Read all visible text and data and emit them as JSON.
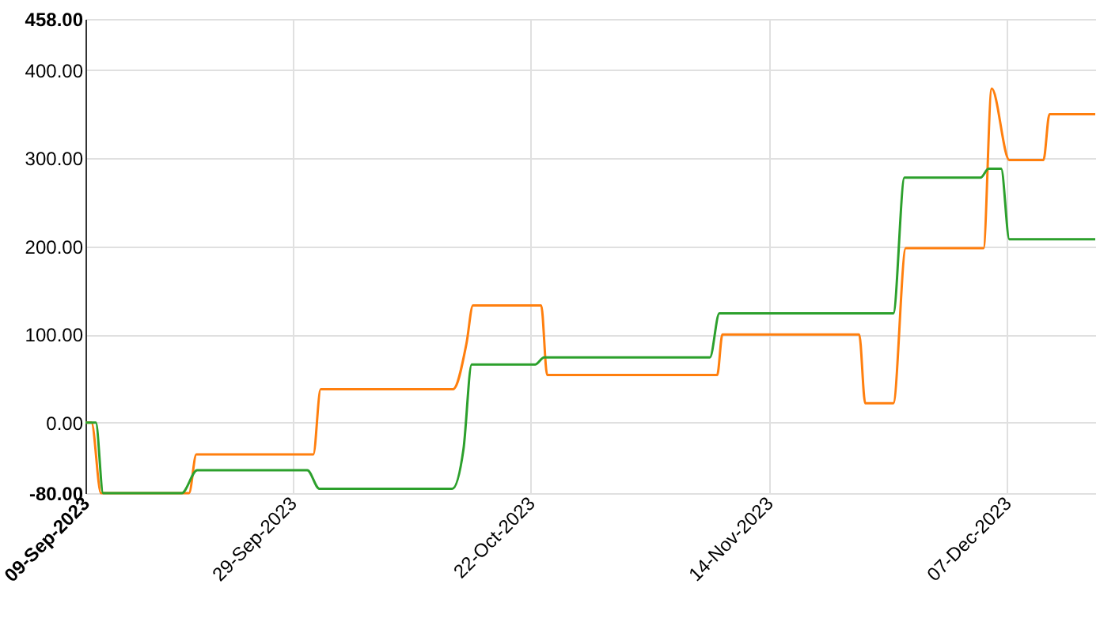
{
  "chart_data": {
    "type": "line",
    "xlim": [
      "2023-09-09",
      "2023-12-15T12:00"
    ],
    "ylim": [
      -80,
      458
    ],
    "xticks": [
      {
        "value": "2023-09-09",
        "label": "09-Sep-2023"
      },
      {
        "value": "2023-09-29",
        "label": "29-Sep-2023"
      },
      {
        "value": "2023-10-22",
        "label": "22-Oct-2023"
      },
      {
        "value": "2023-11-14",
        "label": "14-Nov-2023"
      },
      {
        "value": "2023-12-07",
        "label": "07-Dec-2023"
      }
    ],
    "yticks": [
      {
        "value": -80,
        "label": "-80.00"
      },
      {
        "value": 0,
        "label": "0.00"
      },
      {
        "value": 100,
        "label": "100.00"
      },
      {
        "value": 200,
        "label": "200.00"
      },
      {
        "value": 300,
        "label": "300.00"
      },
      {
        "value": 400,
        "label": "400.00"
      },
      {
        "value": 458,
        "label": "458.00"
      }
    ],
    "grid": true,
    "line_style": "solid",
    "marker": "none",
    "series": [
      {
        "color": "#ff7f0e",
        "x": [
          "2023-09-09",
          "2023-09-09T14:00",
          "2023-09-10T12:00",
          "2023-09-19",
          "2023-09-19T17:00",
          "2023-10-01",
          "2023-10-01T17:00",
          "2023-10-14T12:00",
          "2023-10-15T19:00",
          "2023-10-16T10:00",
          "2023-10-23",
          "2023-10-23T14:00",
          "2023-11-09",
          "2023-11-09T12:00",
          "2023-11-22T17:00",
          "2023-11-23T07:00",
          "2023-11-26",
          "2023-11-27T05:00",
          "2023-12-04T17:00",
          "2023-12-05T12:00",
          "2023-12-07T05:00",
          "2023-12-10T12:00",
          "2023-12-11T02:00",
          "2023-12-15T12:00"
        ],
        "values": [
          0,
          0,
          -80,
          -80,
          -36,
          -36,
          38,
          38,
          90,
          133,
          133,
          54,
          54,
          100,
          100,
          22,
          22,
          198,
          198,
          379,
          298,
          298,
          350,
          350
        ]
      },
      {
        "color": "#2ca02c",
        "x": [
          "2023-09-09",
          "2023-09-10",
          "2023-09-10T17:00",
          "2023-09-18T07:00",
          "2023-09-19T19:00",
          "2023-09-30T10:00",
          "2023-10-01T14:00",
          "2023-10-14T10:00",
          "2023-10-15T12:00",
          "2023-10-16T07:00",
          "2023-10-22T10:00",
          "2023-10-23T07:00",
          "2023-11-08T07:00",
          "2023-11-09T05:00",
          "2023-11-26",
          "2023-11-27T02:00",
          "2023-12-04T10:00",
          "2023-12-05T05:00",
          "2023-12-06T10:00",
          "2023-12-07T05:00",
          "2023-12-15T12:00"
        ],
        "values": [
          0,
          0,
          -80,
          -80,
          -54,
          -54,
          -75,
          -75,
          -30,
          66,
          66,
          74,
          74,
          124,
          124,
          278,
          278,
          288,
          288,
          208,
          208
        ]
      }
    ]
  }
}
